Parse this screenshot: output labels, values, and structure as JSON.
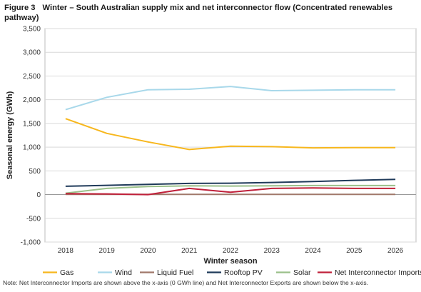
{
  "figure": {
    "label": "Figure 3",
    "title": "Winter – South Australian supply mix and net interconnector flow (Concentrated renewables pathway)"
  },
  "footnote": "Note: Net Interconnector Imports are shown above the x-axis (0 GWh line) and Net Interconnector Exports are shown below the x-axis.",
  "chart_data": {
    "type": "line",
    "title": "Winter – South Australian supply mix and net interconnector flow (Concentrated renewables pathway)",
    "xlabel": "Winter season",
    "ylabel": "Seasonal energy (GWh)",
    "ylim": [
      -1000,
      3500
    ],
    "yticks": [
      -1000,
      -500,
      0,
      500,
      1000,
      1500,
      2000,
      2500,
      3000,
      3500
    ],
    "ytick_labels": [
      "-1,000",
      "-500",
      "0",
      "500",
      "1,000",
      "1,500",
      "2,000",
      "2,500",
      "3,000",
      "3,500"
    ],
    "grid": true,
    "legend_position": "bottom",
    "x": [
      "2018",
      "2019",
      "2020",
      "2021",
      "2022",
      "2023",
      "2024",
      "2025",
      "2026"
    ],
    "series": [
      {
        "name": "Gas",
        "color": "#f7b71d",
        "values": [
          1600,
          1290,
          1110,
          950,
          1020,
          1010,
          985,
          990,
          990
        ]
      },
      {
        "name": "Wind",
        "color": "#a8d8ea",
        "values": [
          1790,
          2050,
          2210,
          2220,
          2280,
          2190,
          2200,
          2210,
          2210
        ]
      },
      {
        "name": "Liquid Fuel",
        "color": "#a0786a",
        "values": [
          5,
          5,
          5,
          5,
          5,
          5,
          5,
          5,
          5
        ]
      },
      {
        "name": "Rooftop PV",
        "color": "#1f3a5a",
        "values": [
          175,
          195,
          215,
          235,
          240,
          255,
          275,
          300,
          320
        ]
      },
      {
        "name": "Solar",
        "color": "#9bc08a",
        "values": [
          30,
          130,
          170,
          185,
          180,
          185,
          190,
          190,
          190
        ]
      },
      {
        "name": "Net Interconnector Imports/Exports",
        "color": "#c0203a",
        "values": [
          20,
          15,
          0,
          130,
          50,
          130,
          140,
          130,
          130
        ]
      }
    ]
  }
}
